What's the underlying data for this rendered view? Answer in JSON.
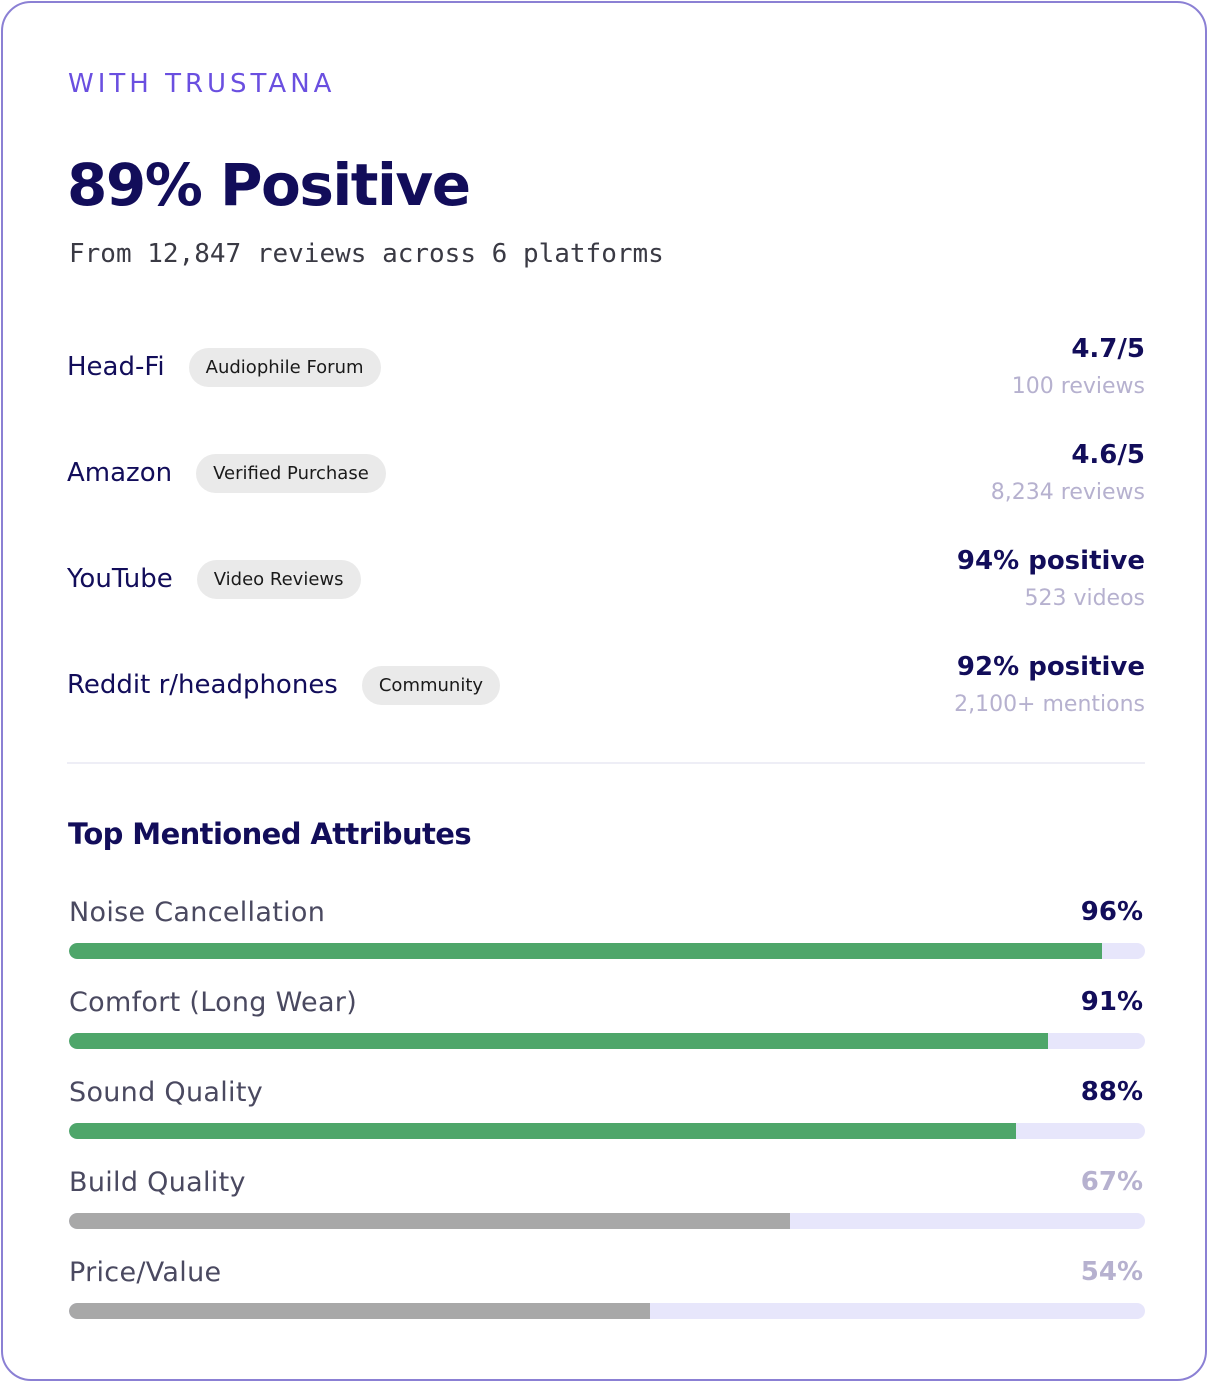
{
  "eyebrow": "WITH TRUSTANA",
  "headline": "89% Positive",
  "subhead": "From 12,847 reviews across 6 platforms",
  "colors": {
    "accent": "#6a4fe0",
    "navy": "#120d5a",
    "bar_positive": "#4ea66a",
    "bar_neutral": "#a8a8a8",
    "value_muted": "#b6b1cf",
    "track": "#e7e6fb"
  },
  "platforms": [
    {
      "name": "Head-Fi",
      "tag": "Audiophile Forum",
      "score": "4.7/5",
      "count": "100 reviews"
    },
    {
      "name": "Amazon",
      "tag": "Verified Purchase",
      "score": "4.6/5",
      "count": "8,234 reviews"
    },
    {
      "name": "YouTube",
      "tag": "Video Reviews",
      "score": "94% positive",
      "count": "523 videos"
    },
    {
      "name": "Reddit r/headphones",
      "tag": "Community",
      "score": "92% positive",
      "count": "2,100+ mentions"
    }
  ],
  "attributes_title": "Top Mentioned Attributes",
  "attributes": [
    {
      "label": "Noise Cancellation",
      "value_text": "96%",
      "percent": 96,
      "status": "positive"
    },
    {
      "label": "Comfort (Long Wear)",
      "value_text": "91%",
      "percent": 91,
      "status": "positive"
    },
    {
      "label": "Sound Quality",
      "value_text": "88%",
      "percent": 88,
      "status": "positive"
    },
    {
      "label": "Build Quality",
      "value_text": "67%",
      "percent": 67,
      "status": "neutral"
    },
    {
      "label": "Price/Value",
      "value_text": "54%",
      "percent": 54,
      "status": "neutral"
    }
  ]
}
